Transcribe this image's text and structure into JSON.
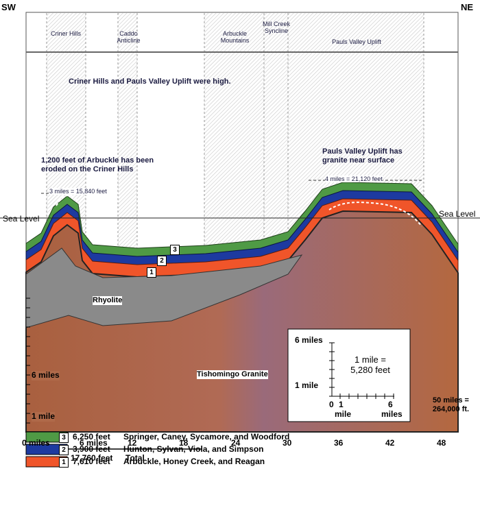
{
  "corners": {
    "sw": "SW",
    "ne": "NE"
  },
  "regions": [
    "Criner Hills",
    "Caddo Anticline",
    "Arbuckle Mountains",
    "Mill Creek Syncline",
    "Pauls Valley Uplift"
  ],
  "annotations": {
    "high": "Criner Hills and Pauls Valley Uplift were high.",
    "eroded": "1,200 feet of Arbuckle has been eroded on the Criner Hills",
    "granite_near": "Pauls Valley Uplift has granite near surface",
    "width_criner": "3 miles = 15,840 feet",
    "width_pauls": "4 miles = 21,120 feet",
    "sea_level_left": "Sea Level",
    "sea_level_right": "Sea Level",
    "rhyolite": "Rhyolite",
    "granite": "Tishomingo Granite",
    "length": "50 miles = 264,000 ft."
  },
  "layer_numbers": [
    "3",
    "2",
    "1"
  ],
  "left_scale": [
    "6 miles",
    "1 mile"
  ],
  "x_axis_labels": [
    "0 miles",
    "6 miles",
    "12",
    "18",
    "24",
    "30",
    "36",
    "42",
    "48"
  ],
  "inset": {
    "y_top": "6 miles",
    "y_bottom": "1 mile",
    "note": "1 mile = 5,280 feet",
    "x0": "0",
    "x1": "1",
    "x1_unit": "mile",
    "x6": "6",
    "x6_unit": "miles"
  },
  "legend": [
    {
      "number": "3",
      "thickness": "6,250 feet",
      "formations": "Springer, Caney, Sycamore, and Woodford"
    },
    {
      "number": "2",
      "thickness": "3,900 feet",
      "formations": "Hunton, Sylvan, Viola, and Simpson"
    },
    {
      "number": "1",
      "thickness": "7,610 feet",
      "formations": "Arbuckle, Honey Creek, and Reagan"
    }
  ],
  "total": {
    "thickness": "17,760 feet",
    "label": "Total"
  }
}
